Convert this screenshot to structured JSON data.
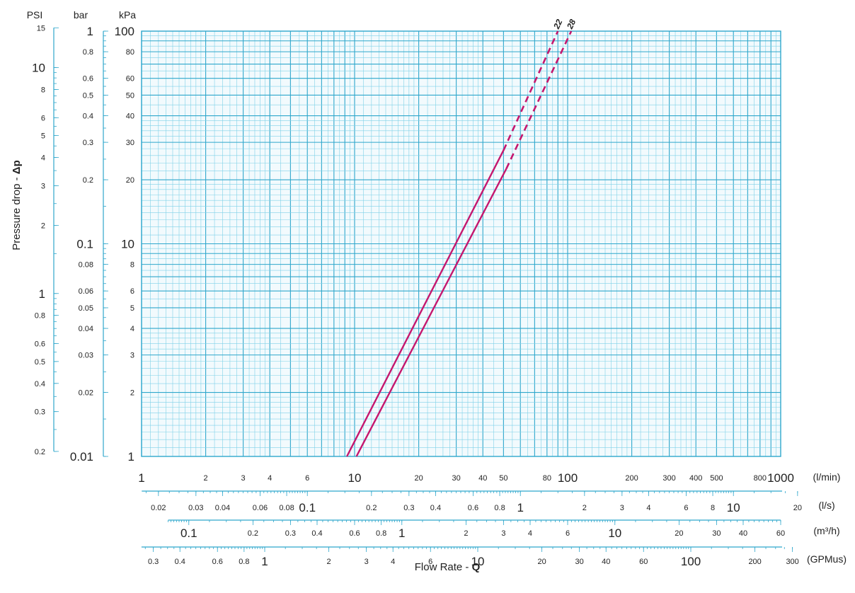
{
  "chart_data": {
    "type": "line",
    "x_axis": {
      "title_text": "Flow Rate - ",
      "title_symbol": "Q",
      "scale": "log",
      "range_l_per_min": [
        1,
        1000
      ],
      "scales": [
        {
          "unit": "(l/min)",
          "ticks": [
            1,
            2,
            3,
            4,
            6,
            10,
            20,
            30,
            40,
            50,
            80,
            100,
            200,
            300,
            400,
            500,
            800,
            1000
          ],
          "major": [
            1,
            10,
            100,
            1000
          ],
          "labels": [
            "1",
            "2",
            "3",
            "4",
            "6",
            "10",
            "20",
            "30",
            "40",
            "50",
            "80",
            "100",
            "200",
            "300",
            "400",
            "500",
            "800",
            "1000"
          ]
        },
        {
          "unit": "(l/s)",
          "ticks": [
            0.02,
            0.03,
            0.04,
            0.06,
            0.08,
            0.1,
            0.2,
            0.3,
            0.4,
            0.6,
            0.8,
            1,
            2,
            3,
            4,
            6,
            8,
            10,
            20
          ],
          "major": [
            0.1,
            1,
            10
          ],
          "labels": [
            "0.02",
            "0.03",
            "0.04",
            "0.06",
            "0.08",
            "0.1",
            "0.2",
            "0.3",
            "0.4",
            "0.6",
            "0.8",
            "1",
            "2",
            "3",
            "4",
            "6",
            "8",
            "10",
            "20"
          ],
          "range": [
            0.0167,
            20
          ]
        },
        {
          "unit": "(m³/h)",
          "ticks": [
            0.1,
            0.2,
            0.3,
            0.4,
            0.6,
            0.8,
            1,
            2,
            3,
            4,
            6,
            10,
            20,
            30,
            40,
            60
          ],
          "major": [
            0.1,
            1,
            10
          ],
          "labels": [
            "0.1",
            "0.2",
            "0.3",
            "0.4",
            "0.6",
            "0.8",
            "1",
            "2",
            "3",
            "4",
            "6",
            "10",
            "20",
            "30",
            "40",
            "60"
          ],
          "range": [
            0.08,
            60
          ]
        },
        {
          "unit": "(GPMus)",
          "ticks": [
            0.3,
            0.4,
            0.6,
            0.8,
            1,
            2,
            3,
            4,
            6,
            10,
            20,
            30,
            40,
            60,
            100,
            200,
            300
          ],
          "major": [
            1,
            10,
            100
          ],
          "labels": [
            "0.3",
            "0.4",
            "0.6",
            "0.8",
            "1",
            "2",
            "3",
            "4",
            "6",
            "10",
            "20",
            "30",
            "40",
            "60",
            "100",
            "200",
            "300"
          ],
          "range": [
            0.264,
            300
          ]
        }
      ]
    },
    "y_axis": {
      "title_text": "Pressure drop  - ",
      "title_symbol": "Δp",
      "scale": "log",
      "range_kPa": [
        1,
        100
      ],
      "scales": [
        {
          "unit": "kPa",
          "ticks": [
            1,
            2,
            3,
            4,
            5,
            6,
            8,
            10,
            20,
            30,
            40,
            50,
            60,
            80,
            100
          ],
          "major": [
            1,
            10,
            100
          ],
          "labels": [
            "1",
            "2",
            "3",
            "4",
            "5",
            "6",
            "8",
            "10",
            "20",
            "30",
            "40",
            "50",
            "60",
            "80",
            "100"
          ]
        },
        {
          "unit": "bar",
          "ticks": [
            0.01,
            0.02,
            0.03,
            0.04,
            0.05,
            0.06,
            0.08,
            0.1,
            0.2,
            0.3,
            0.4,
            0.5,
            0.6,
            0.8,
            1
          ],
          "major": [
            0.01,
            0.1,
            1
          ],
          "labels": [
            "0.01",
            "0.02",
            "0.03",
            "0.04",
            "0.05",
            "0.06",
            "0.08",
            "0.1",
            "0.2",
            "0.3",
            "0.4",
            "0.5",
            "0.6",
            "0.8",
            "1"
          ],
          "range": [
            0.01,
            1
          ]
        },
        {
          "unit": "PSI",
          "ticks": [
            0.2,
            0.3,
            0.4,
            0.5,
            0.6,
            0.8,
            1,
            2,
            3,
            4,
            5,
            6,
            8,
            10,
            15
          ],
          "major": [
            1,
            10
          ],
          "labels": [
            "0.2",
            "0.3",
            "0.4",
            "0.5",
            "0.6",
            "0.8",
            "1",
            "2",
            "3",
            "4",
            "5",
            "6",
            "8",
            "10",
            "15"
          ],
          "range": [
            0.19,
            14.5
          ]
        }
      ]
    },
    "grid": true,
    "series": [
      {
        "name": "22",
        "solid": [
          [
            9.2,
            1
          ],
          [
            50,
            27.5
          ]
        ],
        "dashed": [
          [
            50,
            27.5
          ],
          [
            90,
            100
          ]
        ]
      },
      {
        "name": "28",
        "solid": [
          [
            10.2,
            1
          ],
          [
            51.5,
            22.5
          ]
        ],
        "dashed": [
          [
            51.5,
            22.5
          ],
          [
            104,
            100
          ]
        ]
      }
    ],
    "colors": {
      "grid_major": "#2fa7cc",
      "grid_minor": "#7fd1e8",
      "series": "#c5176e",
      "background": "#f2fafd"
    }
  }
}
